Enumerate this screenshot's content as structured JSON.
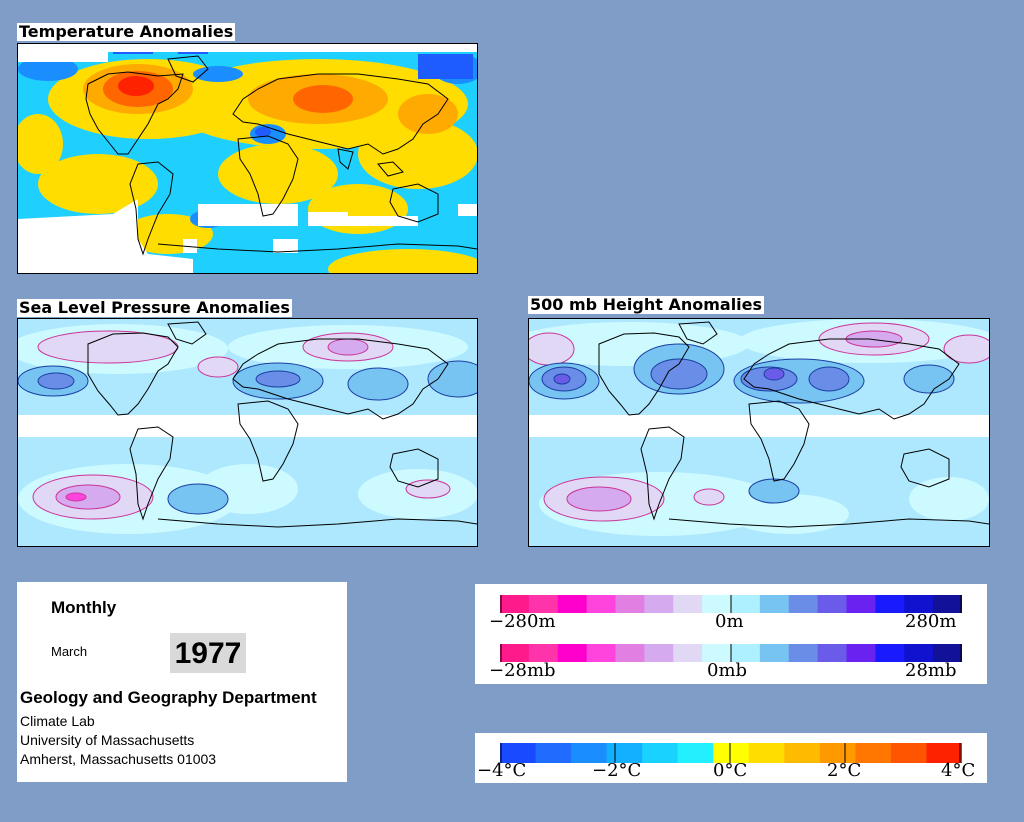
{
  "maps": {
    "temperature": {
      "title": "Temperature Anomalies"
    },
    "slp": {
      "title": "Sea Level Pressure Anomalies"
    },
    "height500": {
      "title": "500 mb Height Anomalies"
    }
  },
  "info": {
    "period": "Monthly",
    "month": "March",
    "year": "1977",
    "department": "Geology and Geography Department",
    "address_lines": [
      "Climate Lab",
      "University of Massachusetts",
      "Amherst, Massachusetts 01003"
    ]
  },
  "legends": {
    "height": {
      "min_label": "−280m",
      "mid_label": "0m",
      "max_label": "280m"
    },
    "pressure": {
      "min_label": "−28mb",
      "mid_label": "0mb",
      "max_label": "28mb"
    },
    "temperature": {
      "labels": [
        "−4°C",
        "−2°C",
        "0°C",
        "2°C",
        "4°C"
      ]
    }
  },
  "colors": {
    "page_background": "#7f9dc6",
    "pressure_height_scale": [
      "#ff1a8c",
      "#ff33aa",
      "#ff00cc",
      "#ff44dd",
      "#e27fe2",
      "#d5aaee",
      "#e0d8f5",
      "#ccfaff",
      "#aef0ff",
      "#77c4f2",
      "#6a8de8",
      "#6a5ce8",
      "#6a22f0",
      "#1a1aff",
      "#1111d0",
      "#111199"
    ],
    "temperature_scale": [
      "#1a4aff",
      "#1f6cff",
      "#1a8eff",
      "#12b0ff",
      "#1ad2ff",
      "#22f0ff",
      "#ffff00",
      "#ffdd00",
      "#ffbb00",
      "#ff9900",
      "#ff7700",
      "#ff5500",
      "#ff2200"
    ]
  }
}
